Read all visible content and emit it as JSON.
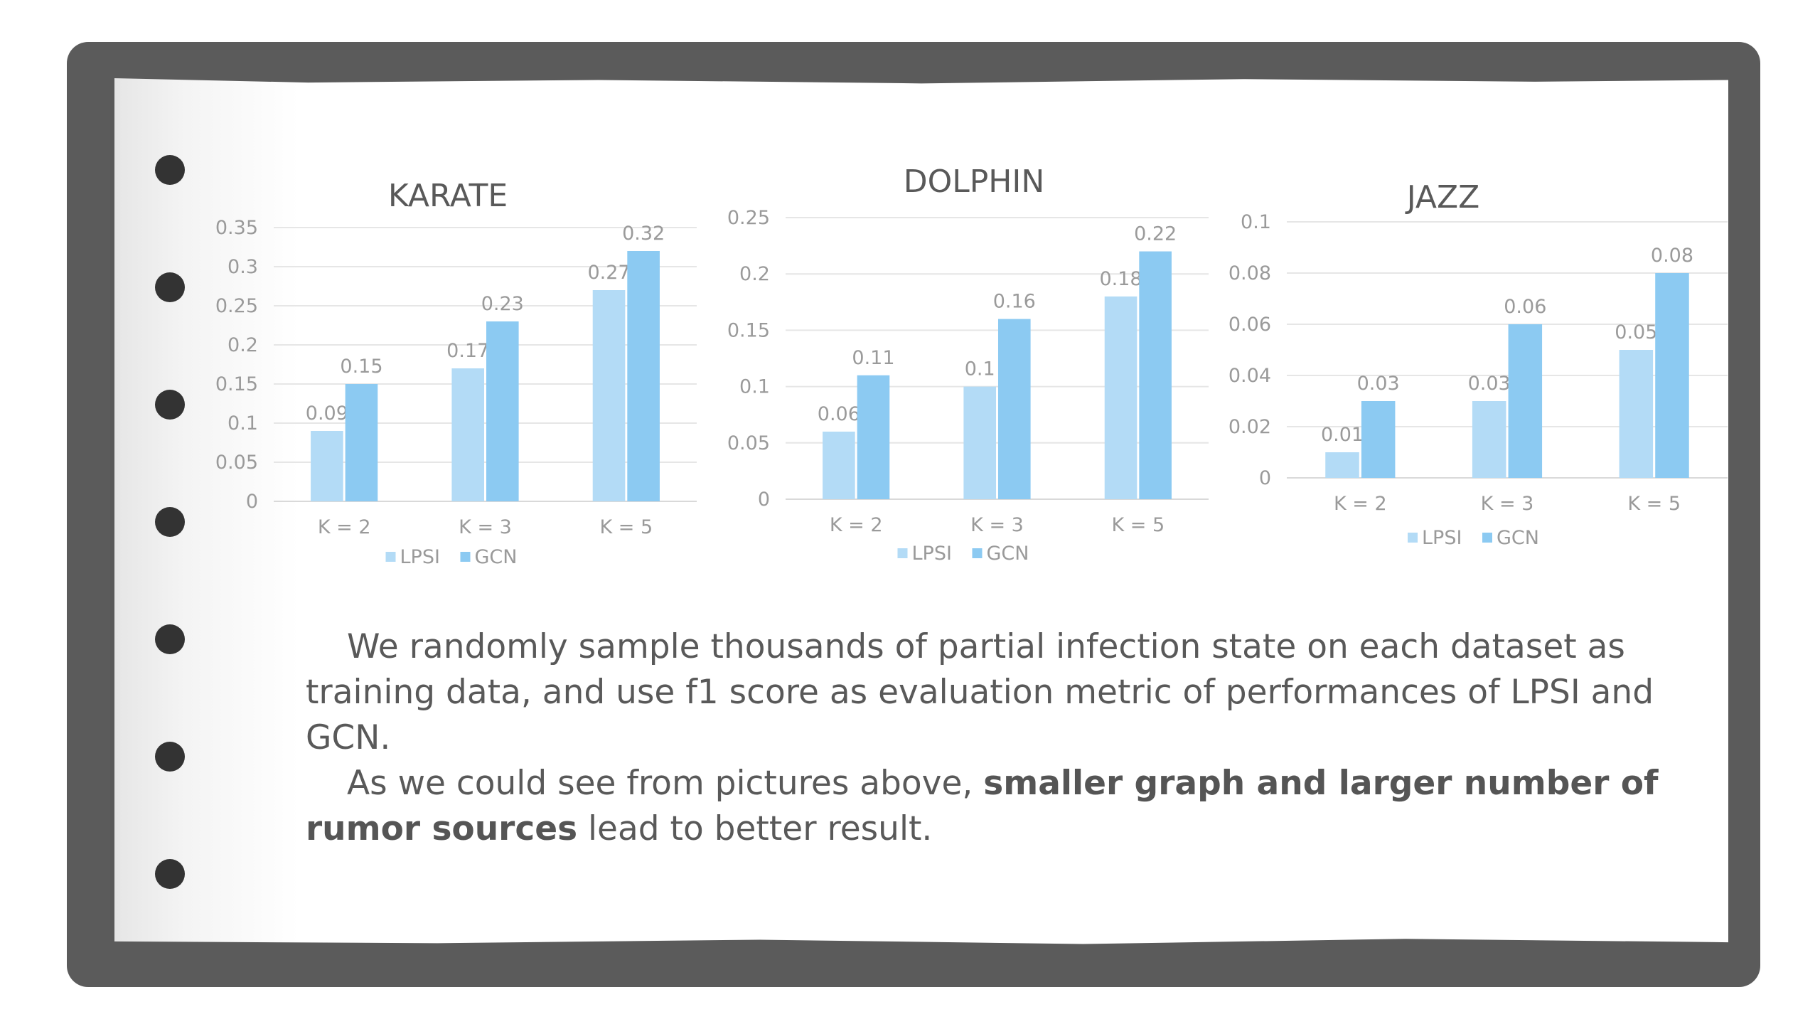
{
  "colors": {
    "frame": "#5b5b5b",
    "lpsi": "#b3dbf6",
    "gcn": "#8ccaf2",
    "text": "#595959"
  },
  "legend": [
    "LPSI",
    "GCN"
  ],
  "chart_data": [
    {
      "type": "bar",
      "title": "KARATE",
      "categories": [
        "K = 2",
        "K = 3",
        "K = 5"
      ],
      "series": [
        {
          "name": "LPSI",
          "values": [
            0.09,
            0.17,
            0.27
          ]
        },
        {
          "name": "GCN",
          "values": [
            0.15,
            0.23,
            0.32
          ]
        }
      ],
      "data_labels": {
        "LPSI": [
          "0.09",
          "0.17",
          "0.27"
        ],
        "GCN": [
          "0.15",
          "0.23",
          "0.32"
        ]
      },
      "ylim": [
        0,
        0.35
      ],
      "yticks": [
        "0",
        "0.05",
        "0.1",
        "0.15",
        "0.2",
        "0.25",
        "0.3",
        "0.35"
      ],
      "grid": true,
      "legend_position": "bottom"
    },
    {
      "type": "bar",
      "title": "DOLPHIN",
      "categories": [
        "K = 2",
        "K = 3",
        "K = 5"
      ],
      "series": [
        {
          "name": "LPSI",
          "values": [
            0.06,
            0.1,
            0.18
          ]
        },
        {
          "name": "GCN",
          "values": [
            0.11,
            0.16,
            0.22
          ]
        }
      ],
      "data_labels": {
        "LPSI": [
          "0.06",
          "0.1",
          "0.18"
        ],
        "GCN": [
          "0.11",
          "0.16",
          "0.22"
        ]
      },
      "ylim": [
        0,
        0.25
      ],
      "yticks": [
        "0",
        "0.05",
        "0.1",
        "0.15",
        "0.2",
        "0.25"
      ],
      "grid": true,
      "legend_position": "bottom"
    },
    {
      "type": "bar",
      "title": "JAZZ",
      "categories": [
        "K = 2",
        "K = 3",
        "K = 5"
      ],
      "series": [
        {
          "name": "LPSI",
          "values": [
            0.01,
            0.03,
            0.05
          ]
        },
        {
          "name": "GCN",
          "values": [
            0.03,
            0.06,
            0.08
          ]
        }
      ],
      "data_labels": {
        "LPSI": [
          "0.01",
          "0.03",
          "0.05"
        ],
        "GCN": [
          "0.03",
          "0.06",
          "0.08"
        ]
      },
      "ylim": [
        0,
        0.1
      ],
      "yticks": [
        "0",
        "0.02",
        "0.04",
        "0.06",
        "0.08",
        "0.1"
      ],
      "grid": true,
      "legend_position": "bottom"
    }
  ],
  "caption": {
    "p1": "We randomly sample thousands of partial infection state on each dataset as training data, and use f1 score as evaluation metric of performances of LPSI and GCN.",
    "p2_start": "As we could see from pictures above, ",
    "p2_bold": "smaller graph and larger number of rumor sources",
    "p2_end": " lead to better result."
  }
}
